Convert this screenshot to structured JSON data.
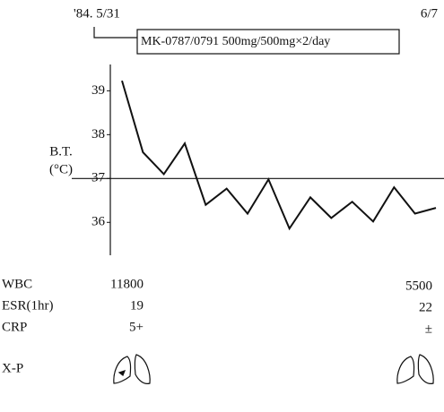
{
  "chart_data": {
    "type": "line",
    "date_start": "'84. 5/31",
    "date_end": "6/7",
    "drug": "MK-0787/0791 500mg/500mg×2/day",
    "ylabel": [
      "B.T.",
      "(°C)"
    ],
    "categories": [
      null,
      null,
      null,
      null,
      null,
      null,
      null,
      null,
      null,
      null,
      null,
      null,
      null,
      null,
      null,
      null
    ],
    "series": [
      {
        "color": "#111111",
        "values": [
          39.23,
          37.6,
          37.1,
          37.8,
          36.4,
          36.77,
          36.2,
          36.98,
          35.86,
          36.57,
          36.1,
          36.47,
          36.02,
          36.8,
          36.2,
          36.33
        ]
      }
    ],
    "ylim": [
      35.25,
      39.6
    ],
    "yticks": [
      36,
      37,
      38,
      39
    ],
    "hline": 37
  },
  "labs": [
    {
      "label": "WBC",
      "first": "11800",
      "last": "5500"
    },
    {
      "label": "ESR(1hr)",
      "first": "19",
      "last": "22"
    },
    {
      "label": "CRP",
      "first": "5+",
      "last": "±"
    }
  ],
  "xp_label": "X-P"
}
